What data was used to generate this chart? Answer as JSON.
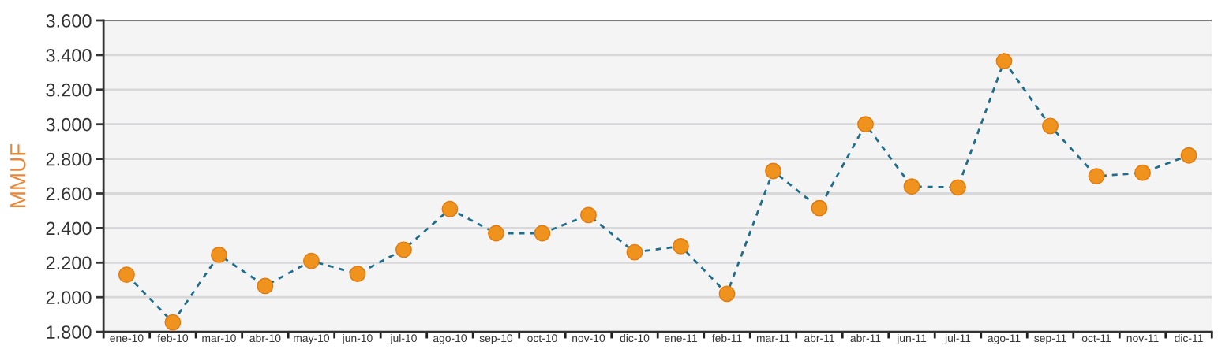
{
  "chart_data": {
    "type": "line",
    "ylabel": "MMUF",
    "categories": [
      "ene-10",
      "feb-10",
      "mar-10",
      "abr-10",
      "may-10",
      "jun-10",
      "jul-10",
      "ago-10",
      "sep-10",
      "oct-10",
      "nov-10",
      "dic-10",
      "ene-11",
      "feb-11",
      "mar-11",
      "abr-11",
      "abr-11",
      "jun-11",
      "jul-11",
      "ago-11",
      "sep-11",
      "oct-11",
      "nov-11",
      "dic-11"
    ],
    "series": [
      {
        "color": "#1f6e8c",
        "values": [
          2130,
          1855,
          2245,
          2065,
          2210,
          2135,
          2275,
          2510,
          2370,
          2370,
          2475,
          2260,
          2295,
          2020,
          2730,
          2515,
          3000,
          2640,
          2635,
          3365,
          2990,
          2700,
          2720,
          2820
        ]
      }
    ],
    "marker": "circle",
    "line_style": "dashed",
    "ylim": [
      1800,
      3600
    ],
    "yticks": [
      {
        "value": 1800,
        "label": "1.800"
      },
      {
        "value": 2000,
        "label": "2.000"
      },
      {
        "value": 2200,
        "label": "2.200"
      },
      {
        "value": 2400,
        "label": "2.400"
      },
      {
        "value": 2600,
        "label": "2.600"
      },
      {
        "value": 2800,
        "label": "2.800"
      },
      {
        "value": 3000,
        "label": "3.000"
      },
      {
        "value": 3200,
        "label": "3.200"
      },
      {
        "value": 3400,
        "label": "3.400"
      },
      {
        "value": 3600,
        "label": "3.600"
      }
    ],
    "grid": "y"
  }
}
